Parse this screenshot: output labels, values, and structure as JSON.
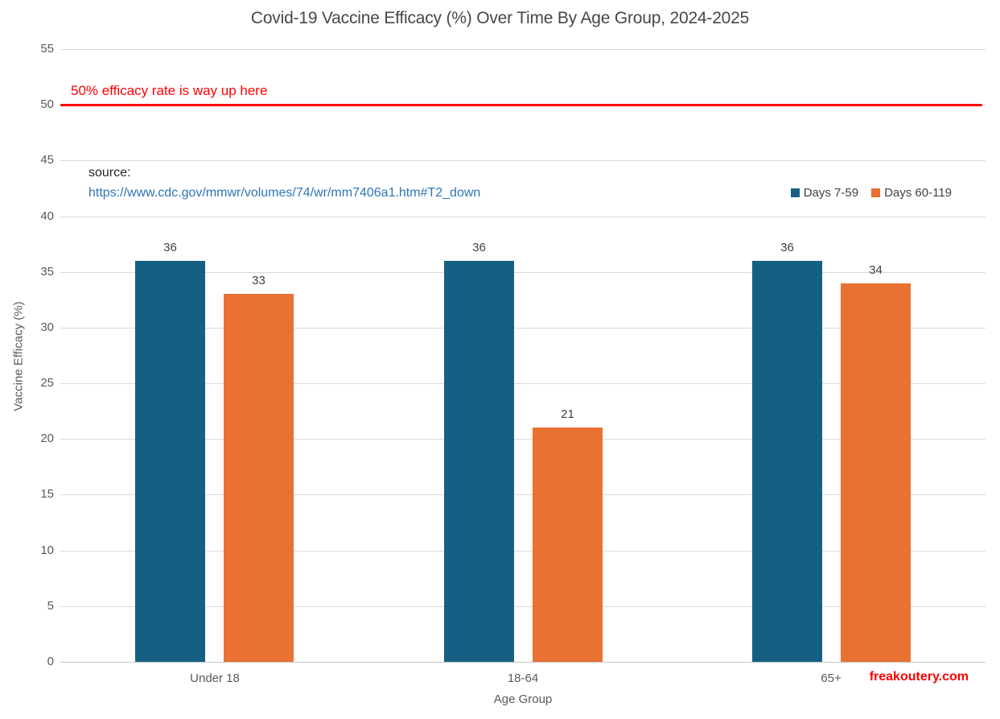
{
  "title": "Covid-19 Vaccine Efficacy (%) Over Time By Age Group, 2024-2025",
  "annotation": {
    "text": "50% efficacy rate is way up here",
    "line_value": 50,
    "color": "#ff0000"
  },
  "source": {
    "label": "source:",
    "url": "https://www.cdc.gov/mmwr/volumes/74/wr/mm7406a1.htm#T2_down",
    "link_color": "#2e75b6"
  },
  "watermark": {
    "text": "freakoutery.com",
    "color": "#ff0000"
  },
  "colors": {
    "series1": "#156082",
    "series2": "#e97132",
    "gridline": "#d9d9d9",
    "tick_text": "#595959",
    "value_label_text": "#404040",
    "title_text": "#474747",
    "annotation_red": "#ff0000",
    "link_blue": "#2e75b6"
  },
  "chart_data": {
    "type": "bar",
    "title": "Covid-19 Vaccine Efficacy (%) Over Time By Age Group, 2024-2025",
    "categories": [
      "Under 18",
      "18-64",
      "65+"
    ],
    "series": [
      {
        "name": "Days 7-59",
        "color": "#156082",
        "values": [
          36,
          36,
          36
        ]
      },
      {
        "name": "Days 60-119",
        "color": "#e97132",
        "values": [
          33,
          21,
          34
        ]
      }
    ],
    "xlabel": "Age Group",
    "ylabel": "Vaccine Efficacy (%)",
    "ylim": [
      0,
      55
    ],
    "ytick_step": 5,
    "yticks": [
      0,
      5,
      10,
      15,
      20,
      25,
      30,
      35,
      40,
      45,
      50,
      55
    ],
    "grid": true,
    "legend_position": "top-right",
    "bar_value_labels": true,
    "annotation_line": {
      "y": 50,
      "label": "50% efficacy rate is way up here",
      "color": "#ff0000"
    }
  }
}
